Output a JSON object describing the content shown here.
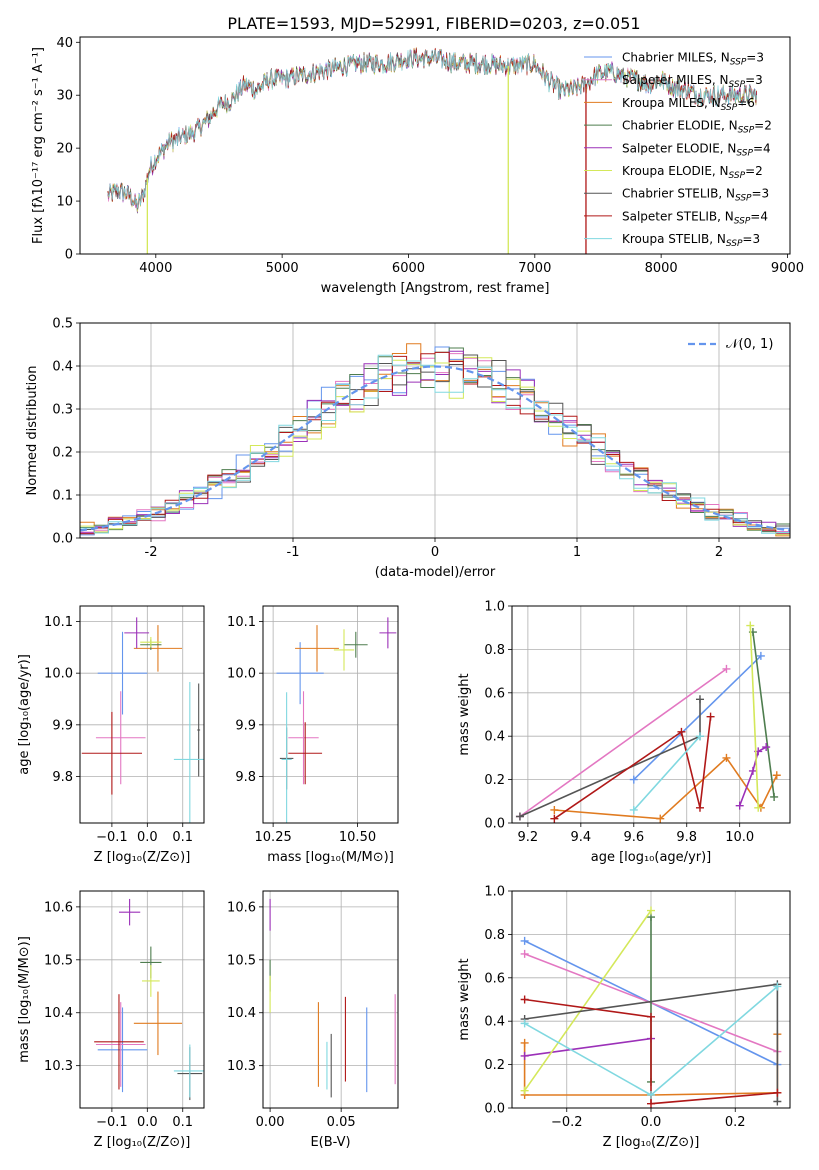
{
  "figure_title": "PLATE=1593, MJD=52991, FIBERID=0203, z=0.051",
  "colors": {
    "chabrier_miles": "#6495ED",
    "salpeter_miles": "#E377C2",
    "kroupa_miles": "#E07B20",
    "chabrier_elodie": "#4E7D4E",
    "salpeter_elodie": "#9B30B8",
    "kroupa_elodie": "#D4E85A",
    "chabrier_stelib": "#555555",
    "salpeter_stelib": "#B01818",
    "kroupa_stelib": "#80D8E0",
    "normal_curve": "#6495ED",
    "grid": "#b0b0b0"
  },
  "legend": {
    "items": [
      {
        "label": "Chabrier MILES, N",
        "sub": "SSP",
        "suffix": "=3",
        "color_key": "chabrier_miles"
      },
      {
        "label": "Salpeter MILES, N",
        "sub": "SSP",
        "suffix": "=3",
        "color_key": "salpeter_miles"
      },
      {
        "label": "Kroupa MILES, N",
        "sub": "SSP",
        "suffix": "=6",
        "color_key": "kroupa_miles"
      },
      {
        "label": "Chabrier ELODIE, N",
        "sub": "SSP",
        "suffix": "=2",
        "color_key": "chabrier_elodie"
      },
      {
        "label": "Salpeter ELODIE, N",
        "sub": "SSP",
        "suffix": "=4",
        "color_key": "salpeter_elodie"
      },
      {
        "label": "Kroupa ELODIE, N",
        "sub": "SSP",
        "suffix": "=2",
        "color_key": "kroupa_elodie"
      },
      {
        "label": "Chabrier STELIB, N",
        "sub": "SSP",
        "suffix": "=3",
        "color_key": "chabrier_stelib"
      },
      {
        "label": "Salpeter STELIB, N",
        "sub": "SSP",
        "suffix": "=4",
        "color_key": "salpeter_stelib"
      },
      {
        "label": "Kroupa STELIB, N",
        "sub": "SSP",
        "suffix": "=3",
        "color_key": "kroupa_stelib"
      }
    ],
    "normal_label": "𝒩(0, 1)"
  },
  "chart_data": [
    {
      "id": "spectrum",
      "type": "line",
      "xlabel": "wavelength [Angstrom, rest frame]",
      "ylabel": "Flux [fλ10⁻¹⁷ erg cm⁻² s⁻¹ A⁻¹]",
      "xlim": [
        3400,
        9020
      ],
      "ylim": [
        0,
        41
      ],
      "xticks": [
        4000,
        5000,
        6000,
        7000,
        8000,
        9000
      ],
      "yticks": [
        0,
        10,
        20,
        30,
        40
      ],
      "grid": false,
      "legend_position": "right",
      "data_range": [
        3620,
        8760
      ],
      "continuum": {
        "x": [
          3620,
          3700,
          3800,
          3850,
          3900,
          3950,
          4000,
          4100,
          4200,
          4300,
          4400,
          4500,
          4600,
          4700,
          4800,
          4900,
          5000,
          5200,
          5400,
          5600,
          5800,
          6000,
          6200,
          6400,
          6600,
          6800,
          7000,
          7100,
          7200,
          7300,
          7400,
          7500,
          7600,
          7700,
          7800,
          7900,
          8000,
          8100,
          8200,
          8300,
          8400,
          8500,
          8600,
          8760
        ],
        "y": [
          11,
          12,
          11,
          9,
          11,
          16,
          18,
          21,
          22,
          23,
          25,
          28,
          29,
          32,
          31,
          33,
          33,
          34,
          35,
          36,
          36,
          37,
          37,
          36,
          36,
          35.5,
          36,
          33,
          31,
          31,
          32,
          34,
          34.5,
          33.5,
          33,
          32,
          33,
          31.5,
          31,
          30,
          30,
          30,
          30,
          30
        ]
      },
      "dips": [
        3933,
        6790,
        7405
      ]
    },
    {
      "id": "residual_hist",
      "type": "line",
      "xlabel": "(data-model)/error",
      "ylabel": "Normed distribution",
      "xlim": [
        -2.5,
        2.5
      ],
      "ylim": [
        0,
        0.5
      ],
      "xticks": [
        -2,
        -1,
        0,
        1,
        2
      ],
      "yticks": [
        0.0,
        0.1,
        0.2,
        0.3,
        0.4,
        0.5
      ],
      "grid": true,
      "legend_position": "top-right",
      "bin_width": 0.1,
      "bin_start": -2.5,
      "bin_count": 50,
      "normal": {
        "mu": 0,
        "sigma": 1
      }
    },
    {
      "id": "age_vs_Z",
      "type": "scatter",
      "xlabel": "Z [log₁₀(Z/Z⊙)]",
      "ylabel": "age  [log₁₀(age/yr)]",
      "xlim": [
        -0.19,
        0.16
      ],
      "ylim": [
        9.71,
        10.13
      ],
      "xticks": [
        -0.1,
        0.0,
        0.1
      ],
      "xticklabels": [
        "−0.1",
        "0.0",
        "0.1"
      ],
      "yticks": [
        9.8,
        9.9,
        10.0,
        10.1
      ],
      "yticklabels": [
        "9.8",
        "9.9",
        "10.0",
        "10.1"
      ],
      "grid": true,
      "points": [
        {
          "key": "chabrier_miles",
          "x": -0.07,
          "y": 10.0,
          "xerr": 0.07,
          "yerr": 0.08
        },
        {
          "key": "salpeter_miles",
          "x": -0.075,
          "y": 9.875,
          "xerr": 0.07,
          "yerr": 0.09
        },
        {
          "key": "kroupa_miles",
          "x": 0.03,
          "y": 10.048,
          "xerr": 0.068,
          "yerr": 0.045
        },
        {
          "key": "chabrier_elodie",
          "x": 0.01,
          "y": 10.055,
          "xerr": 0.03,
          "yerr": 0.01
        },
        {
          "key": "salpeter_elodie",
          "x": -0.03,
          "y": 10.078,
          "xerr": 0.035,
          "yerr": 0.03
        },
        {
          "key": "kroupa_elodie",
          "x": 0.01,
          "y": 10.06,
          "xerr": 0.03,
          "yerr": 0.01
        },
        {
          "key": "chabrier_stelib",
          "x": 0.145,
          "y": 9.89,
          "xerr": 0.004,
          "yerr": 0.09
        },
        {
          "key": "salpeter_stelib",
          "x": -0.1,
          "y": 9.845,
          "xerr": 0.085,
          "yerr": 0.08
        },
        {
          "key": "kroupa_stelib",
          "x": 0.12,
          "y": 9.833,
          "xerr": 0.045,
          "yerr": 0.15
        }
      ]
    },
    {
      "id": "age_vs_mass",
      "type": "scatter",
      "xlabel": "mass [log₁₀(M/M⊙)]",
      "ylabel": "",
      "xlim": [
        10.22,
        10.62
      ],
      "ylim": [
        9.71,
        10.13
      ],
      "xticks": [
        10.25,
        10.5
      ],
      "xticklabels": [
        "10.25",
        "10.50"
      ],
      "yticks": [
        9.8,
        9.9,
        10.0,
        10.1
      ],
      "yticklabels": [
        "9.8",
        "9.9",
        "10.0",
        "10.1"
      ],
      "grid": true,
      "points": [
        {
          "key": "chabrier_miles",
          "x": 10.33,
          "y": 10.0,
          "xerr": 0.07,
          "yerr": 0.06
        },
        {
          "key": "salpeter_miles",
          "x": 10.34,
          "y": 9.875,
          "xerr": 0.045,
          "yerr": 0.09
        },
        {
          "key": "kroupa_miles",
          "x": 10.38,
          "y": 10.048,
          "xerr": 0.065,
          "yerr": 0.045
        },
        {
          "key": "chabrier_elodie",
          "x": 10.495,
          "y": 10.055,
          "xerr": 0.035,
          "yerr": 0.025
        },
        {
          "key": "salpeter_elodie",
          "x": 10.59,
          "y": 10.078,
          "xerr": 0.025,
          "yerr": 0.03
        },
        {
          "key": "kroupa_elodie",
          "x": 10.46,
          "y": 10.045,
          "xerr": 0.03,
          "yerr": 0.04
        },
        {
          "key": "chabrier_stelib",
          "x": 10.29,
          "y": 9.835,
          "xerr": 0.02,
          "yerr": 0.06
        },
        {
          "key": "salpeter_stelib",
          "x": 10.345,
          "y": 9.845,
          "xerr": 0.05,
          "yerr": 0.06
        },
        {
          "key": "kroupa_stelib",
          "x": 10.29,
          "y": 9.833,
          "xerr": 0.015,
          "yerr": 0.13
        }
      ]
    },
    {
      "id": "weight_vs_age",
      "type": "line",
      "xlabel": "age  [log₁₀(age/yr)]",
      "ylabel": "mass weight",
      "xlim": [
        9.14,
        10.19
      ],
      "ylim": [
        0,
        1.0
      ],
      "xticks": [
        9.2,
        9.4,
        9.6,
        9.8,
        10.0
      ],
      "xticklabels": [
        "9.2",
        "9.4",
        "9.6",
        "9.8",
        "10.0"
      ],
      "yticks": [
        0.0,
        0.2,
        0.4,
        0.6,
        0.8,
        1.0
      ],
      "yticklabels": [
        "0.0",
        "0.2",
        "0.4",
        "0.6",
        "0.8",
        "1.0"
      ],
      "grid": true,
      "series": [
        {
          "key": "chabrier_miles",
          "x": [
            9.6,
            10.08
          ],
          "y": [
            0.2,
            0.77
          ]
        },
        {
          "key": "salpeter_miles",
          "x": [
            9.17,
            9.95
          ],
          "y": [
            0.03,
            0.71
          ]
        },
        {
          "key": "kroupa_miles",
          "x": [
            9.3,
            9.7,
            9.95,
            10.08,
            10.14
          ],
          "y": [
            0.06,
            0.02,
            0.3,
            0.07,
            0.22
          ]
        },
        {
          "key": "chabrier_elodie",
          "x": [
            10.05,
            10.13
          ],
          "y": [
            0.88,
            0.12
          ]
        },
        {
          "key": "salpeter_elodie",
          "x": [
            10.0,
            10.05,
            10.07,
            10.1
          ],
          "y": [
            0.08,
            0.24,
            0.33,
            0.35
          ]
        },
        {
          "key": "kroupa_elodie",
          "x": [
            10.04,
            10.07
          ],
          "y": [
            0.91,
            0.07
          ]
        },
        {
          "key": "chabrier_stelib",
          "x": [
            9.17,
            9.85,
            9.85
          ],
          "y": [
            0.03,
            0.4,
            0.57
          ]
        },
        {
          "key": "salpeter_stelib",
          "x": [
            9.3,
            9.78,
            9.85,
            9.89
          ],
          "y": [
            0.02,
            0.42,
            0.07,
            0.49
          ]
        },
        {
          "key": "kroupa_stelib",
          "x": [
            9.6,
            9.85
          ],
          "y": [
            0.06,
            0.4
          ]
        }
      ]
    },
    {
      "id": "mass_vs_Z",
      "type": "scatter",
      "xlabel": "Z [log₁₀(Z/Z⊙)]",
      "ylabel": "mass [log₁₀(M/M⊙)]",
      "xlim": [
        -0.19,
        0.16
      ],
      "ylim": [
        10.22,
        10.63
      ],
      "xticks": [
        -0.1,
        0.0,
        0.1
      ],
      "xticklabels": [
        "−0.1",
        "0.0",
        "0.1"
      ],
      "yticks": [
        10.3,
        10.4,
        10.5,
        10.6
      ],
      "yticklabels": [
        "10.3",
        "10.4",
        "10.5",
        "10.6"
      ],
      "grid": true,
      "points": [
        {
          "key": "chabrier_miles",
          "x": -0.07,
          "y": 10.33,
          "xerr": 0.07,
          "yerr": 0.08
        },
        {
          "key": "salpeter_miles",
          "x": -0.075,
          "y": 10.34,
          "xerr": 0.07,
          "yerr": 0.08
        },
        {
          "key": "kroupa_miles",
          "x": 0.03,
          "y": 10.38,
          "xerr": 0.068,
          "yerr": 0.06
        },
        {
          "key": "chabrier_elodie",
          "x": 0.01,
          "y": 10.495,
          "xerr": 0.03,
          "yerr": 0.03
        },
        {
          "key": "salpeter_elodie",
          "x": -0.05,
          "y": 10.59,
          "xerr": 0.03,
          "yerr": 0.025
        },
        {
          "key": "kroupa_elodie",
          "x": 0.01,
          "y": 10.46,
          "xerr": 0.025,
          "yerr": 0.03
        },
        {
          "key": "chabrier_stelib",
          "x": 0.12,
          "y": 10.285,
          "xerr": 0.035,
          "yerr": 0.05
        },
        {
          "key": "salpeter_stelib",
          "x": -0.08,
          "y": 10.345,
          "xerr": 0.07,
          "yerr": 0.09
        },
        {
          "key": "kroupa_stelib",
          "x": 0.12,
          "y": 10.29,
          "xerr": 0.045,
          "yerr": 0.05
        }
      ]
    },
    {
      "id": "mass_vs_ebv",
      "type": "scatter",
      "xlabel": "E(B-V)",
      "ylabel": "",
      "xlim": [
        -0.005,
        0.09
      ],
      "ylim": [
        10.22,
        10.63
      ],
      "xticks": [
        0.0,
        0.05
      ],
      "xticklabels": [
        "0.00",
        "0.05"
      ],
      "yticks": [
        10.3,
        10.4,
        10.5,
        10.6
      ],
      "yticklabels": [
        "10.3",
        "10.4",
        "10.5",
        "10.6"
      ],
      "grid": true,
      "points": [
        {
          "key": "chabrier_miles",
          "x": 0.068,
          "y": 10.33,
          "xerr": 0.0,
          "yerr": 0.08
        },
        {
          "key": "salpeter_miles",
          "x": 0.088,
          "y": 10.35,
          "xerr": 0.0,
          "yerr": 0.085
        },
        {
          "key": "kroupa_miles",
          "x": 0.034,
          "y": 10.34,
          "xerr": 0.0,
          "yerr": 0.08
        },
        {
          "key": "chabrier_elodie",
          "x": 0.0,
          "y": 10.47,
          "xerr": 0.0,
          "yerr": 0.03
        },
        {
          "key": "salpeter_elodie",
          "x": 0.0,
          "y": 10.585,
          "xerr": 0.0,
          "yerr": 0.03
        },
        {
          "key": "kroupa_elodie",
          "x": 0.0,
          "y": 10.435,
          "xerr": 0.0,
          "yerr": 0.035
        },
        {
          "key": "chabrier_stelib",
          "x": 0.043,
          "y": 10.3,
          "xerr": 0.0,
          "yerr": 0.06
        },
        {
          "key": "salpeter_stelib",
          "x": 0.053,
          "y": 10.35,
          "xerr": 0.0,
          "yerr": 0.08
        },
        {
          "key": "kroupa_stelib",
          "x": 0.04,
          "y": 10.3,
          "xerr": 0.0,
          "yerr": 0.045
        }
      ]
    },
    {
      "id": "weight_vs_Z",
      "type": "line",
      "xlabel": "Z [log₁₀(Z/Z⊙)]",
      "ylabel": "mass weight",
      "xlim": [
        -0.33,
        0.33
      ],
      "ylim": [
        0,
        1.0
      ],
      "xticks": [
        -0.2,
        0.0,
        0.2
      ],
      "xticklabels": [
        "−0.2",
        "0.0",
        "0.2"
      ],
      "yticks": [
        0.0,
        0.2,
        0.4,
        0.6,
        0.8,
        1.0
      ],
      "yticklabels": [
        "0.0",
        "0.2",
        "0.4",
        "0.6",
        "0.8",
        "1.0"
      ],
      "grid": true,
      "series": [
        {
          "key": "chabrier_miles",
          "x": [
            -0.3,
            0.3
          ],
          "y": [
            0.77,
            0.2
          ]
        },
        {
          "key": "salpeter_miles",
          "x": [
            -0.3,
            0.3
          ],
          "y": [
            0.71,
            0.26
          ]
        },
        {
          "key": "kroupa_miles",
          "x": [
            -0.3,
            -0.3,
            0.0,
            0.3,
            0.3
          ],
          "y": [
            0.3,
            0.06,
            0.06,
            0.07,
            0.34
          ]
        },
        {
          "key": "chabrier_elodie",
          "x": [
            0.0,
            0.0
          ],
          "y": [
            0.88,
            0.12
          ]
        },
        {
          "key": "salpeter_elodie",
          "x": [
            -0.3,
            0.0
          ],
          "y": [
            0.24,
            0.32
          ]
        },
        {
          "key": "kroupa_elodie",
          "x": [
            -0.3,
            0.0
          ],
          "y": [
            0.08,
            0.91
          ]
        },
        {
          "key": "chabrier_stelib",
          "x": [
            -0.3,
            0.3,
            0.3
          ],
          "y": [
            0.41,
            0.57,
            0.03
          ]
        },
        {
          "key": "salpeter_stelib",
          "x": [
            -0.3,
            0.0,
            0.0,
            0.3
          ],
          "y": [
            0.5,
            0.42,
            0.02,
            0.07
          ]
        },
        {
          "key": "kroupa_stelib",
          "x": [
            -0.3,
            0.0,
            0.3
          ],
          "y": [
            0.39,
            0.06,
            0.56
          ]
        }
      ]
    }
  ]
}
